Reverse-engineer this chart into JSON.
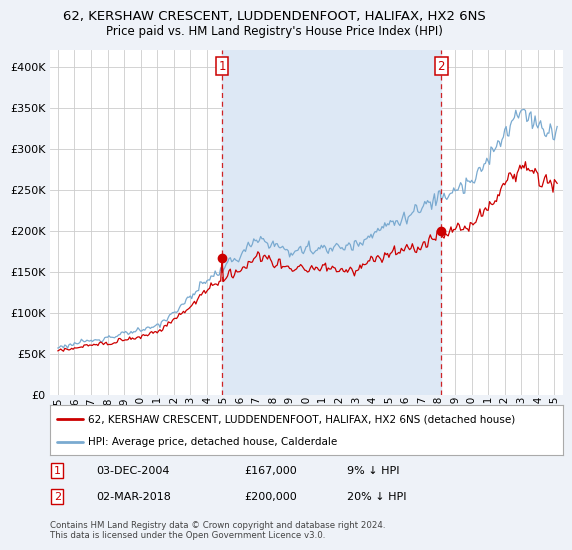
{
  "title": "62, KERSHAW CRESCENT, LUDDENDENFOOT, HALIFAX, HX2 6NS",
  "subtitle": "Price paid vs. HM Land Registry's House Price Index (HPI)",
  "legend_label_red": "62, KERSHAW CRESCENT, LUDDENDENFOOT, HALIFAX, HX2 6NS (detached house)",
  "legend_label_blue": "HPI: Average price, detached house, Calderdale",
  "footnote": "Contains HM Land Registry data © Crown copyright and database right 2024.\nThis data is licensed under the Open Government Licence v3.0.",
  "sale1_label": "1",
  "sale1_date": "03-DEC-2004",
  "sale1_price": "£167,000",
  "sale1_hpi": "9% ↓ HPI",
  "sale2_label": "2",
  "sale2_date": "02-MAR-2018",
  "sale2_price": "£200,000",
  "sale2_hpi": "20% ↓ HPI",
  "vline1_x": 2004.917,
  "vline2_x": 2018.167,
  "marker1_x": 2004.917,
  "marker1_y": 167000,
  "marker2_x": 2018.167,
  "marker2_y": 200000,
  "ylim": [
    0,
    420000
  ],
  "xlim_start": 1994.5,
  "xlim_end": 2025.5,
  "bg_color": "#eef2f8",
  "plot_bg": "#ffffff",
  "shade_color": "#dde8f5",
  "red_color": "#cc0000",
  "blue_color": "#7aaad0",
  "grid_color": "#cccccc",
  "title_fontsize": 9.5,
  "subtitle_fontsize": 8.5,
  "ytick_fontsize": 8,
  "xtick_fontsize": 7.5
}
